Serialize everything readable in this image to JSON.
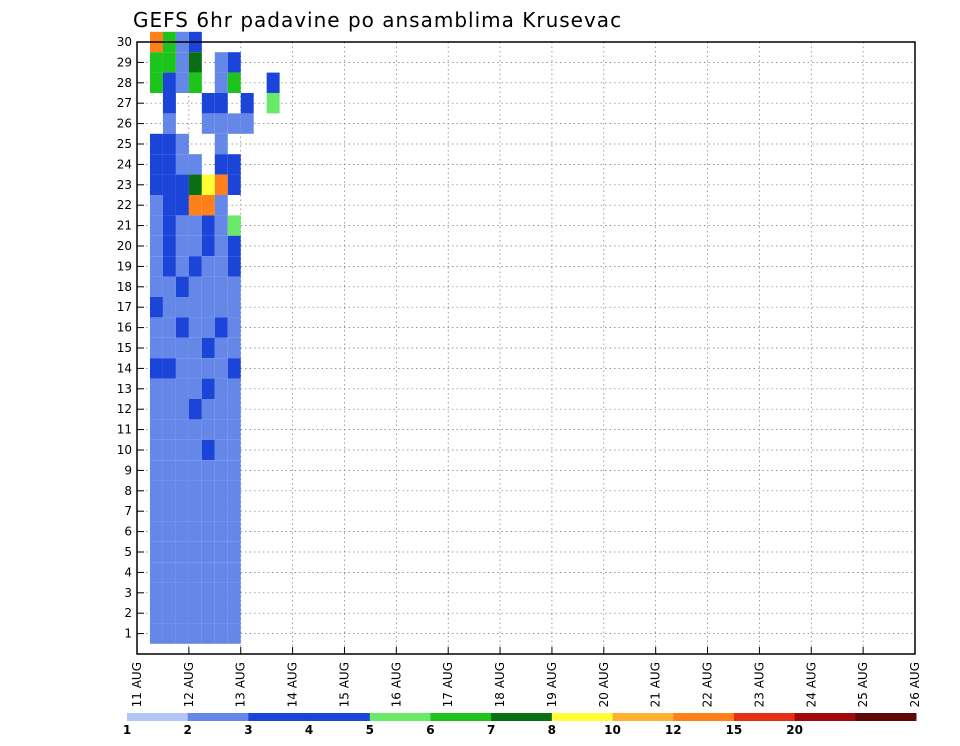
{
  "chart_data": {
    "type": "heatmap",
    "title": "GEFS 6hr padavine po ansamblima Krusevac",
    "x_tick_labels": [
      "11 AUG",
      "12 AUG",
      "13 AUG",
      "14 AUG",
      "15 AUG",
      "16 AUG",
      "17 AUG",
      "18 AUG",
      "19 AUG",
      "20 AUG",
      "21 AUG",
      "22 AUG",
      "23 AUG",
      "24 AUG",
      "25 AUG",
      "26 AUG"
    ],
    "x_range_days": [
      0,
      15
    ],
    "y_tick_labels": [
      "1",
      "2",
      "3",
      "4",
      "5",
      "6",
      "7",
      "8",
      "9",
      "10",
      "11",
      "12",
      "13",
      "14",
      "15",
      "16",
      "17",
      "18",
      "19",
      "20",
      "21",
      "22",
      "23",
      "24",
      "25",
      "26",
      "27",
      "28",
      "29",
      "30"
    ],
    "y_range": [
      0,
      30
    ],
    "grid": true,
    "colorbar": {
      "position": "bottom",
      "labels": [
        "1",
        "2",
        "3",
        "4",
        "5",
        "6",
        "7",
        "8",
        "10",
        "12",
        "15",
        "20"
      ],
      "colors": [
        "#b3c6f5",
        "#6487e8",
        "#1a45d8",
        "#1a45d8",
        "#6ae868",
        "#1cc41c",
        "#0a6e14",
        "#ffff33",
        "#ffb030",
        "#ff8018",
        "#e33016",
        "#a20a0a",
        "#5e0808"
      ]
    },
    "cells": [
      {
        "t": 0.25,
        "m": 30,
        "c": 10
      },
      {
        "t": 0.5,
        "m": 30,
        "c": 6
      },
      {
        "t": 0.75,
        "m": 30,
        "c": 2
      },
      {
        "t": 1.0,
        "m": 30,
        "c": 3
      },
      {
        "t": 0.25,
        "m": 29,
        "c": 6
      },
      {
        "t": 0.5,
        "m": 29,
        "c": 6
      },
      {
        "t": 0.75,
        "m": 29,
        "c": 2
      },
      {
        "t": 1.0,
        "m": 29,
        "c": 7
      },
      {
        "t": 1.5,
        "m": 29,
        "c": 2
      },
      {
        "t": 1.75,
        "m": 29,
        "c": 4
      },
      {
        "t": 0.25,
        "m": 28,
        "c": 6
      },
      {
        "t": 0.5,
        "m": 28,
        "c": 3
      },
      {
        "t": 0.75,
        "m": 28,
        "c": 2
      },
      {
        "t": 1.0,
        "m": 28,
        "c": 6
      },
      {
        "t": 1.5,
        "m": 28,
        "c": 2
      },
      {
        "t": 1.75,
        "m": 28,
        "c": 6
      },
      {
        "t": 2.5,
        "m": 28,
        "c": 4
      },
      {
        "t": 0.5,
        "m": 27,
        "c": 3
      },
      {
        "t": 1.25,
        "m": 27,
        "c": 3
      },
      {
        "t": 1.5,
        "m": 27,
        "c": 4
      },
      {
        "t": 2.0,
        "m": 27,
        "c": 3
      },
      {
        "t": 2.5,
        "m": 27,
        "c": 5
      },
      {
        "t": 0.5,
        "m": 26,
        "c": 2
      },
      {
        "t": 1.25,
        "m": 26,
        "c": 2
      },
      {
        "t": 1.5,
        "m": 26,
        "c": 2
      },
      {
        "t": 1.75,
        "m": 26,
        "c": 2
      },
      {
        "t": 2.0,
        "m": 26,
        "c": 2
      },
      {
        "t": 0.25,
        "m": 25,
        "c": 4
      },
      {
        "t": 0.5,
        "m": 25,
        "c": 3
      },
      {
        "t": 0.75,
        "m": 25,
        "c": 2
      },
      {
        "t": 1.5,
        "m": 25,
        "c": 2
      },
      {
        "t": 0.25,
        "m": 24,
        "c": 4
      },
      {
        "t": 0.5,
        "m": 24,
        "c": 3
      },
      {
        "t": 0.75,
        "m": 24,
        "c": 2
      },
      {
        "t": 1.0,
        "m": 24,
        "c": 2
      },
      {
        "t": 1.5,
        "m": 24,
        "c": 3
      },
      {
        "t": 1.75,
        "m": 24,
        "c": 4
      },
      {
        "t": 0.25,
        "m": 23,
        "c": 3
      },
      {
        "t": 0.5,
        "m": 23,
        "c": 3
      },
      {
        "t": 0.75,
        "m": 23,
        "c": 4
      },
      {
        "t": 1.0,
        "m": 23,
        "c": 7
      },
      {
        "t": 1.25,
        "m": 23,
        "c": 8
      },
      {
        "t": 1.5,
        "m": 23,
        "c": 10
      },
      {
        "t": 1.75,
        "m": 23,
        "c": 3
      },
      {
        "t": 0.25,
        "m": 22,
        "c": 2
      },
      {
        "t": 0.5,
        "m": 22,
        "c": 3
      },
      {
        "t": 0.75,
        "m": 22,
        "c": 4
      },
      {
        "t": 1.0,
        "m": 22,
        "c": 10
      },
      {
        "t": 1.25,
        "m": 22,
        "c": 10
      },
      {
        "t": 1.5,
        "m": 22,
        "c": 2
      },
      {
        "t": 0.25,
        "m": 21,
        "c": 2
      },
      {
        "t": 0.5,
        "m": 21,
        "c": 3
      },
      {
        "t": 0.75,
        "m": 21,
        "c": 2
      },
      {
        "t": 1.0,
        "m": 21,
        "c": 2
      },
      {
        "t": 1.25,
        "m": 21,
        "c": 4
      },
      {
        "t": 1.5,
        "m": 21,
        "c": 2
      },
      {
        "t": 1.75,
        "m": 21,
        "c": 5
      },
      {
        "t": 0.25,
        "m": 20,
        "c": 2
      },
      {
        "t": 0.5,
        "m": 20,
        "c": 4
      },
      {
        "t": 0.75,
        "m": 20,
        "c": 2
      },
      {
        "t": 1.0,
        "m": 20,
        "c": 2
      },
      {
        "t": 1.25,
        "m": 20,
        "c": 3
      },
      {
        "t": 1.5,
        "m": 20,
        "c": 2
      },
      {
        "t": 1.75,
        "m": 20,
        "c": 3
      },
      {
        "t": 0.25,
        "m": 19,
        "c": 2
      },
      {
        "t": 0.5,
        "m": 19,
        "c": 3
      },
      {
        "t": 0.75,
        "m": 19,
        "c": 2
      },
      {
        "t": 1.0,
        "m": 19,
        "c": 4
      },
      {
        "t": 1.25,
        "m": 19,
        "c": 2
      },
      {
        "t": 1.5,
        "m": 19,
        "c": 2
      },
      {
        "t": 1.75,
        "m": 19,
        "c": 4
      },
      {
        "t": 0.25,
        "m": 18,
        "c": 2
      },
      {
        "t": 0.5,
        "m": 18,
        "c": 2
      },
      {
        "t": 0.75,
        "m": 18,
        "c": 4
      },
      {
        "t": 1.0,
        "m": 18,
        "c": 2
      },
      {
        "t": 1.25,
        "m": 18,
        "c": 2
      },
      {
        "t": 1.5,
        "m": 18,
        "c": 2
      },
      {
        "t": 1.75,
        "m": 18,
        "c": 2
      },
      {
        "t": 0.25,
        "m": 17,
        "c": 4
      },
      {
        "t": 0.5,
        "m": 17,
        "c": 2
      },
      {
        "t": 0.75,
        "m": 17,
        "c": 2
      },
      {
        "t": 1.0,
        "m": 17,
        "c": 2
      },
      {
        "t": 1.25,
        "m": 17,
        "c": 2
      },
      {
        "t": 1.5,
        "m": 17,
        "c": 2
      },
      {
        "t": 1.75,
        "m": 17,
        "c": 2
      },
      {
        "t": 0.25,
        "m": 16,
        "c": 2
      },
      {
        "t": 0.5,
        "m": 16,
        "c": 2
      },
      {
        "t": 0.75,
        "m": 16,
        "c": 3
      },
      {
        "t": 1.0,
        "m": 16,
        "c": 2
      },
      {
        "t": 1.25,
        "m": 16,
        "c": 2
      },
      {
        "t": 1.5,
        "m": 16,
        "c": 4
      },
      {
        "t": 1.75,
        "m": 16,
        "c": 2
      },
      {
        "t": 0.25,
        "m": 15,
        "c": 2
      },
      {
        "t": 0.5,
        "m": 15,
        "c": 2
      },
      {
        "t": 0.75,
        "m": 15,
        "c": 2
      },
      {
        "t": 1.0,
        "m": 15,
        "c": 2
      },
      {
        "t": 1.25,
        "m": 15,
        "c": 3
      },
      {
        "t": 1.5,
        "m": 15,
        "c": 2
      },
      {
        "t": 1.75,
        "m": 15,
        "c": 2
      },
      {
        "t": 0.25,
        "m": 14,
        "c": 3
      },
      {
        "t": 0.5,
        "m": 14,
        "c": 4
      },
      {
        "t": 0.75,
        "m": 14,
        "c": 2
      },
      {
        "t": 1.0,
        "m": 14,
        "c": 2
      },
      {
        "t": 1.25,
        "m": 14,
        "c": 2
      },
      {
        "t": 1.5,
        "m": 14,
        "c": 2
      },
      {
        "t": 1.75,
        "m": 14,
        "c": 3
      },
      {
        "t": 0.25,
        "m": 13,
        "c": 2
      },
      {
        "t": 0.5,
        "m": 13,
        "c": 2
      },
      {
        "t": 0.75,
        "m": 13,
        "c": 2
      },
      {
        "t": 1.0,
        "m": 13,
        "c": 2
      },
      {
        "t": 1.25,
        "m": 13,
        "c": 4
      },
      {
        "t": 1.5,
        "m": 13,
        "c": 2
      },
      {
        "t": 1.75,
        "m": 13,
        "c": 2
      },
      {
        "t": 0.25,
        "m": 12,
        "c": 2
      },
      {
        "t": 0.5,
        "m": 12,
        "c": 2
      },
      {
        "t": 0.75,
        "m": 12,
        "c": 2
      },
      {
        "t": 1.0,
        "m": 12,
        "c": 3
      },
      {
        "t": 1.25,
        "m": 12,
        "c": 2
      },
      {
        "t": 1.5,
        "m": 12,
        "c": 2
      },
      {
        "t": 1.75,
        "m": 12,
        "c": 2
      },
      {
        "t": 0.25,
        "m": 11,
        "c": 2
      },
      {
        "t": 0.5,
        "m": 11,
        "c": 2
      },
      {
        "t": 0.75,
        "m": 11,
        "c": 2
      },
      {
        "t": 1.0,
        "m": 11,
        "c": 2
      },
      {
        "t": 1.25,
        "m": 11,
        "c": 2
      },
      {
        "t": 1.5,
        "m": 11,
        "c": 2
      },
      {
        "t": 1.75,
        "m": 11,
        "c": 2
      },
      {
        "t": 0.25,
        "m": 10,
        "c": 2
      },
      {
        "t": 0.5,
        "m": 10,
        "c": 2
      },
      {
        "t": 0.75,
        "m": 10,
        "c": 2
      },
      {
        "t": 1.0,
        "m": 10,
        "c": 2
      },
      {
        "t": 1.25,
        "m": 10,
        "c": 3
      },
      {
        "t": 1.5,
        "m": 10,
        "c": 2
      },
      {
        "t": 1.75,
        "m": 10,
        "c": 2
      },
      {
        "t": 0.25,
        "m": 9,
        "c": 2
      },
      {
        "t": 0.5,
        "m": 9,
        "c": 2
      },
      {
        "t": 0.75,
        "m": 9,
        "c": 2
      },
      {
        "t": 1.0,
        "m": 9,
        "c": 2
      },
      {
        "t": 1.25,
        "m": 9,
        "c": 2
      },
      {
        "t": 1.5,
        "m": 9,
        "c": 2
      },
      {
        "t": 1.75,
        "m": 9,
        "c": 2
      },
      {
        "t": 0.25,
        "m": 8,
        "c": 2
      },
      {
        "t": 0.5,
        "m": 8,
        "c": 2
      },
      {
        "t": 0.75,
        "m": 8,
        "c": 2
      },
      {
        "t": 1.0,
        "m": 8,
        "c": 2
      },
      {
        "t": 1.25,
        "m": 8,
        "c": 2
      },
      {
        "t": 1.5,
        "m": 8,
        "c": 2
      },
      {
        "t": 1.75,
        "m": 8,
        "c": 2
      },
      {
        "t": 0.25,
        "m": 7,
        "c": 2
      },
      {
        "t": 0.5,
        "m": 7,
        "c": 2
      },
      {
        "t": 0.75,
        "m": 7,
        "c": 2
      },
      {
        "t": 1.0,
        "m": 7,
        "c": 2
      },
      {
        "t": 1.25,
        "m": 7,
        "c": 2
      },
      {
        "t": 1.5,
        "m": 7,
        "c": 2
      },
      {
        "t": 1.75,
        "m": 7,
        "c": 2
      },
      {
        "t": 0.25,
        "m": 6,
        "c": 2
      },
      {
        "t": 0.5,
        "m": 6,
        "c": 2
      },
      {
        "t": 0.75,
        "m": 6,
        "c": 2
      },
      {
        "t": 1.0,
        "m": 6,
        "c": 2
      },
      {
        "t": 1.25,
        "m": 6,
        "c": 2
      },
      {
        "t": 1.5,
        "m": 6,
        "c": 2
      },
      {
        "t": 1.75,
        "m": 6,
        "c": 2
      },
      {
        "t": 0.25,
        "m": 5,
        "c": 2
      },
      {
        "t": 0.5,
        "m": 5,
        "c": 2
      },
      {
        "t": 0.75,
        "m": 5,
        "c": 2
      },
      {
        "t": 1.0,
        "m": 5,
        "c": 2
      },
      {
        "t": 1.25,
        "m": 5,
        "c": 2
      },
      {
        "t": 1.5,
        "m": 5,
        "c": 2
      },
      {
        "t": 1.75,
        "m": 5,
        "c": 2
      },
      {
        "t": 0.25,
        "m": 4,
        "c": 2
      },
      {
        "t": 0.5,
        "m": 4,
        "c": 2
      },
      {
        "t": 0.75,
        "m": 4,
        "c": 2
      },
      {
        "t": 1.0,
        "m": 4,
        "c": 2
      },
      {
        "t": 1.25,
        "m": 4,
        "c": 2
      },
      {
        "t": 1.5,
        "m": 4,
        "c": 2
      },
      {
        "t": 1.75,
        "m": 4,
        "c": 2
      },
      {
        "t": 0.25,
        "m": 3,
        "c": 2
      },
      {
        "t": 0.5,
        "m": 3,
        "c": 2
      },
      {
        "t": 0.75,
        "m": 3,
        "c": 2
      },
      {
        "t": 1.0,
        "m": 3,
        "c": 2
      },
      {
        "t": 1.25,
        "m": 3,
        "c": 2
      },
      {
        "t": 1.5,
        "m": 3,
        "c": 2
      },
      {
        "t": 1.75,
        "m": 3,
        "c": 2
      },
      {
        "t": 0.25,
        "m": 2,
        "c": 2
      },
      {
        "t": 0.5,
        "m": 2,
        "c": 2
      },
      {
        "t": 0.75,
        "m": 2,
        "c": 2
      },
      {
        "t": 1.0,
        "m": 2,
        "c": 2
      },
      {
        "t": 1.25,
        "m": 2,
        "c": 2
      },
      {
        "t": 1.5,
        "m": 2,
        "c": 2
      },
      {
        "t": 1.75,
        "m": 2,
        "c": 2
      },
      {
        "t": 0.25,
        "m": 1,
        "c": 2
      },
      {
        "t": 0.5,
        "m": 1,
        "c": 2
      },
      {
        "t": 0.75,
        "m": 1,
        "c": 2
      },
      {
        "t": 1.0,
        "m": 1,
        "c": 2
      },
      {
        "t": 1.25,
        "m": 1,
        "c": 2
      },
      {
        "t": 1.5,
        "m": 1,
        "c": 2
      },
      {
        "t": 1.75,
        "m": 1,
        "c": 2
      }
    ]
  }
}
